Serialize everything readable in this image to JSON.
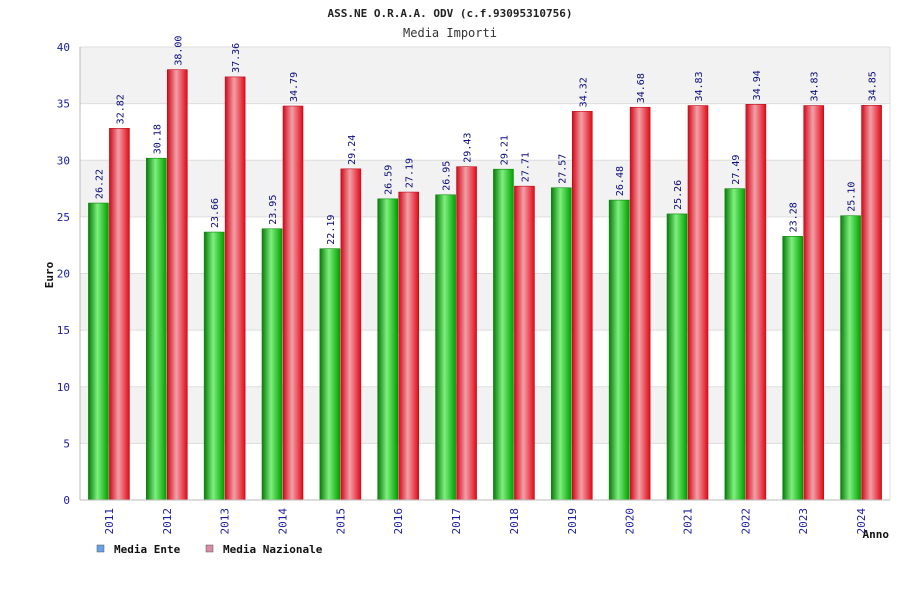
{
  "chart_data": {
    "type": "bar",
    "title": "ASS.NE O.R.A.A. ODV (c.f.93095310756)",
    "subtitle": "Media Importi",
    "xlabel": "Anno",
    "ylabel": "Euro",
    "ylim": [
      0,
      40
    ],
    "yticks": [
      0,
      5,
      10,
      15,
      20,
      25,
      30,
      35,
      40
    ],
    "grid": true,
    "legend_position": "bottom-left",
    "categories": [
      "2011",
      "2012",
      "2013",
      "2014",
      "2015",
      "2016",
      "2017",
      "2018",
      "2019",
      "2020",
      "2021",
      "2022",
      "2023",
      "2024"
    ],
    "series": [
      {
        "name": "Media Ente",
        "color": "#00b000",
        "legend_color": "#6aa0e6",
        "values": [
          26.22,
          30.18,
          23.66,
          23.95,
          22.19,
          26.59,
          26.95,
          29.21,
          27.57,
          26.48,
          25.26,
          27.49,
          23.28,
          25.1
        ],
        "labels": [
          "26.22",
          "30.18",
          "23.66",
          "23.95",
          "22.19",
          "26.59",
          "26.95",
          "29.21",
          "27.57",
          "26.48",
          "25.26",
          "27.49",
          "23.28",
          "25.10"
        ]
      },
      {
        "name": "Media Nazionale",
        "color": "#e8101e",
        "legend_color": "#d98aa6",
        "values": [
          32.82,
          38.0,
          37.36,
          34.79,
          29.24,
          27.19,
          29.43,
          27.71,
          34.32,
          34.68,
          34.83,
          34.94,
          34.83,
          34.85
        ],
        "labels": [
          "32.82",
          "38.00",
          "37.36",
          "34.79",
          "29.24",
          "27.19",
          "29.43",
          "27.71",
          "34.32",
          "34.68",
          "34.83",
          "34.94",
          "34.83",
          "34.85"
        ]
      }
    ]
  }
}
